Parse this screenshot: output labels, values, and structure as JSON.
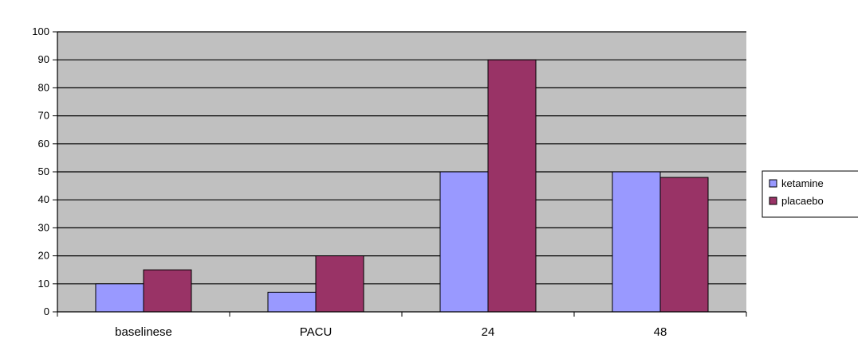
{
  "chart_data": {
    "type": "bar",
    "categories": [
      "baselinese",
      "PACU",
      "24",
      "48"
    ],
    "series": [
      {
        "name": "ketamine",
        "color": "#9999ff",
        "values": [
          10,
          7,
          50,
          50
        ]
      },
      {
        "name": "placaebo",
        "color": "#993366",
        "values": [
          15,
          20,
          90,
          48
        ]
      }
    ],
    "ylim": [
      0,
      100
    ],
    "yticks": [
      0,
      10,
      20,
      30,
      40,
      50,
      60,
      70,
      80,
      90,
      100
    ],
    "grid": true,
    "legend_position": "right",
    "plot_background": "#c0c0c0"
  }
}
